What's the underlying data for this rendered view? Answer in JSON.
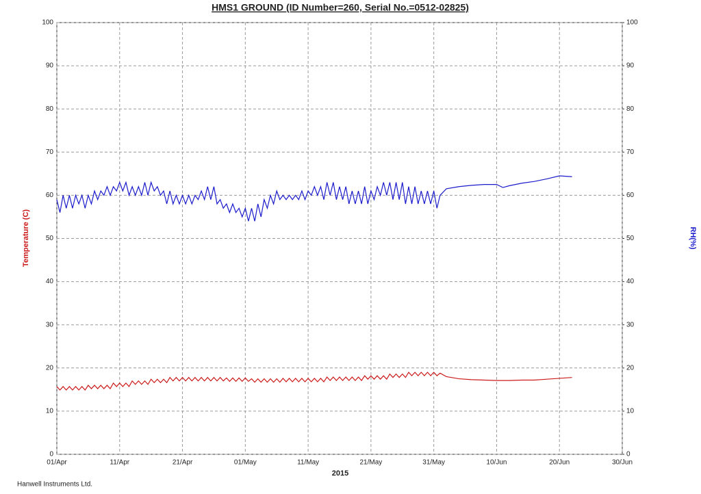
{
  "chart_data": {
    "type": "line",
    "title": "HMS1 GROUND (ID Number=260, Serial No.=0512-02825)",
    "xlabel": "2015",
    "ylabel": "Temperature (C)",
    "y2label": "RH(%)",
    "x": [
      0,
      0.5,
      1,
      1.5,
      2,
      2.5,
      3,
      3.5,
      4,
      4.5,
      5,
      5.5,
      6,
      6.5,
      7,
      7.5,
      8,
      8.5,
      9,
      9.5,
      10,
      10.5,
      11,
      11.5,
      12,
      12.5,
      13,
      13.5,
      14,
      14.5,
      15,
      15.5,
      16,
      16.5,
      17,
      17.5,
      18,
      18.5,
      19,
      19.5,
      20,
      20.5,
      21,
      21.5,
      22,
      22.5,
      23,
      23.5,
      24,
      24.5,
      25,
      25.5,
      26,
      26.5,
      27,
      27.5,
      28,
      28.5,
      29,
      29.5,
      30,
      30.5,
      31,
      31.5,
      32,
      32.5,
      33,
      33.5,
      34,
      34.5,
      35,
      35.5,
      36,
      36.5,
      37,
      37.5,
      38,
      38.5,
      39,
      39.5,
      40,
      40.5,
      41,
      41.5,
      42,
      42.5,
      43,
      43.5,
      44,
      44.5,
      45,
      45.5,
      46,
      46.5,
      47,
      47.5,
      48,
      48.5,
      49,
      49.5,
      50,
      50.5,
      51,
      51.5,
      52,
      52.5,
      53,
      53.5,
      54,
      54.5,
      55,
      55.5,
      56,
      56.5,
      57,
      57.5,
      58,
      58.5,
      59,
      59.5,
      60,
      60.5,
      61,
      62,
      64,
      66,
      68,
      70,
      71,
      72,
      74,
      76,
      78,
      80,
      82
    ],
    "xlim": [
      0,
      90
    ],
    "xticks": [
      {
        "value": 0,
        "label": "01/Apr"
      },
      {
        "value": 10,
        "label": "11/Apr"
      },
      {
        "value": 20,
        "label": "21/Apr"
      },
      {
        "value": 30,
        "label": "01/May"
      },
      {
        "value": 40,
        "label": "11/May"
      },
      {
        "value": 50,
        "label": "21/May"
      },
      {
        "value": 60,
        "label": "31/May"
      },
      {
        "value": 70,
        "label": "10/Jun"
      },
      {
        "value": 80,
        "label": "20/Jun"
      },
      {
        "value": 90,
        "label": "30/Jun"
      }
    ],
    "ylim": [
      0,
      100
    ],
    "yticks": [
      0,
      10,
      20,
      30,
      40,
      50,
      60,
      70,
      80,
      90,
      100
    ],
    "y2lim": [
      0,
      100
    ],
    "y2ticks": [
      0,
      10,
      20,
      30,
      40,
      50,
      60,
      70,
      80,
      90,
      100
    ],
    "grid": true,
    "series": [
      {
        "color": "#cc1a1a",
        "axis": "y",
        "values": [
          15.7,
          14.9,
          15.7,
          14.9,
          15.7,
          14.9,
          15.7,
          14.9,
          15.7,
          14.9,
          16.0,
          15.2,
          16.0,
          15.2,
          16.0,
          15.2,
          16.0,
          15.2,
          16.5,
          15.7,
          16.5,
          15.7,
          16.5,
          15.7,
          17.0,
          16.2,
          17.0,
          16.2,
          17.0,
          16.2,
          17.4,
          16.6,
          17.4,
          16.6,
          17.4,
          16.6,
          17.8,
          17.0,
          17.8,
          17.0,
          17.8,
          17.0,
          17.8,
          17.0,
          17.8,
          17.0,
          17.8,
          17.0,
          17.8,
          17.0,
          17.8,
          17.0,
          17.8,
          17.0,
          17.7,
          16.9,
          17.7,
          16.9,
          17.7,
          16.9,
          17.7,
          16.9,
          17.5,
          16.7,
          17.5,
          16.7,
          17.5,
          16.7,
          17.5,
          16.7,
          17.5,
          16.7,
          17.6,
          16.8,
          17.6,
          16.8,
          17.6,
          16.8,
          17.6,
          16.8,
          17.6,
          16.8,
          17.6,
          16.8,
          17.6,
          16.8,
          17.9,
          17.1,
          17.9,
          17.1,
          17.9,
          17.1,
          17.9,
          17.1,
          17.9,
          17.1,
          17.9,
          17.1,
          18.2,
          17.4,
          18.2,
          17.4,
          18.2,
          17.4,
          18.2,
          17.4,
          18.6,
          17.8,
          18.6,
          17.8,
          18.6,
          17.8,
          19.0,
          18.2,
          19.0,
          18.2,
          19.0,
          18.2,
          19.0,
          18.2,
          19.0,
          18.2,
          18.8,
          18,
          17.5,
          17.3,
          17.2,
          17.1,
          17.1,
          17.1,
          17.2,
          17.2,
          17.4,
          17.6,
          17.8
        ]
      },
      {
        "color": "#1a1acc",
        "axis": "y2",
        "values": [
          59,
          56,
          60,
          57,
          60,
          57,
          60,
          58,
          60,
          57,
          60,
          58,
          61,
          59,
          61,
          60,
          62,
          60,
          62,
          61,
          63,
          61,
          63,
          60,
          62,
          60,
          62,
          60,
          63,
          60,
          63,
          61,
          62,
          60,
          61,
          58,
          61,
          58,
          60,
          58,
          60,
          58,
          60,
          58,
          60,
          59,
          61,
          59,
          62,
          59,
          62,
          58,
          59,
          57,
          58,
          56,
          58,
          56,
          57,
          55,
          57,
          54,
          57,
          54,
          58,
          55,
          59,
          57,
          60,
          58,
          61,
          59,
          60,
          59,
          60,
          59,
          60,
          59,
          61,
          59,
          61,
          60,
          62,
          60,
          62,
          59,
          63,
          60,
          63,
          59,
          62,
          59,
          62,
          58,
          61,
          58,
          61,
          58,
          62,
          58,
          61,
          59,
          62,
          60,
          63,
          60,
          63,
          59,
          63,
          59,
          63,
          58,
          62,
          58,
          62,
          58,
          61,
          58,
          61,
          58,
          61,
          57,
          60,
          61.5,
          62,
          62.3,
          62.5,
          62.5,
          61.8,
          62.2,
          62.8,
          63.2,
          63.8,
          64.5,
          64.3
        ]
      }
    ]
  },
  "footer": "Hanwell Instruments Ltd."
}
